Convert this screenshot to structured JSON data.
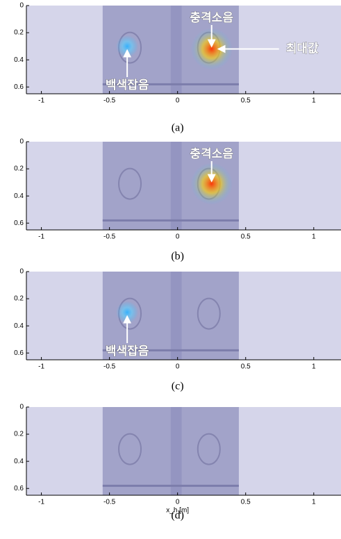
{
  "chart_data": [
    {
      "type": "heatmap",
      "caption": "(a)",
      "xlim": [
        -1.11,
        1.2
      ],
      "ylim": [
        0,
        0.65
      ],
      "xticks": [
        -1,
        -0.5,
        0,
        0.5,
        1
      ],
      "yticks": [
        0,
        0.2,
        0.4,
        0.6
      ],
      "peaks": [
        {
          "x": 0.25,
          "y": 0.32,
          "color": "#ff3000"
        },
        {
          "x": -0.37,
          "y": 0.3,
          "color": "#30b0ff"
        }
      ],
      "annotations": [
        {
          "text": "충격소음",
          "peak": 0,
          "side": "above"
        },
        {
          "text": "최대값",
          "peak": 0,
          "side": "right"
        },
        {
          "text": "백색잡음",
          "peak": 1,
          "side": "below"
        }
      ]
    },
    {
      "type": "heatmap",
      "caption": "(b)",
      "xlim": [
        -1.11,
        1.2
      ],
      "ylim": [
        0,
        0.65
      ],
      "xticks": [
        -1,
        -0.5,
        0,
        0.5,
        1
      ],
      "yticks": [
        0,
        0.2,
        0.4,
        0.6
      ],
      "peaks": [
        {
          "x": 0.25,
          "y": 0.31,
          "color": "#ff3000"
        }
      ],
      "annotations": [
        {
          "text": "충격소음",
          "peak": 0,
          "side": "above"
        }
      ]
    },
    {
      "type": "heatmap",
      "caption": "(c)",
      "xlim": [
        -1.11,
        1.2
      ],
      "ylim": [
        0,
        0.65
      ],
      "xticks": [
        -1,
        -0.5,
        0,
        0.5,
        1
      ],
      "yticks": [
        0,
        0.2,
        0.4,
        0.6
      ],
      "peaks": [
        {
          "x": -0.37,
          "y": 0.3,
          "color": "#30b0ff"
        }
      ],
      "annotations": [
        {
          "text": "백색잡음",
          "peak": 0,
          "side": "below"
        }
      ]
    },
    {
      "type": "heatmap",
      "caption": "(d)",
      "xlim": [
        -1.11,
        1.2
      ],
      "ylim": [
        0,
        0.65
      ],
      "xticks": [
        -1,
        -0.5,
        0,
        0.5,
        1
      ],
      "yticks": [
        0,
        0.2,
        0.4,
        0.6
      ],
      "xlabel": "x_h [m]",
      "peaks": [],
      "annotations": []
    }
  ]
}
